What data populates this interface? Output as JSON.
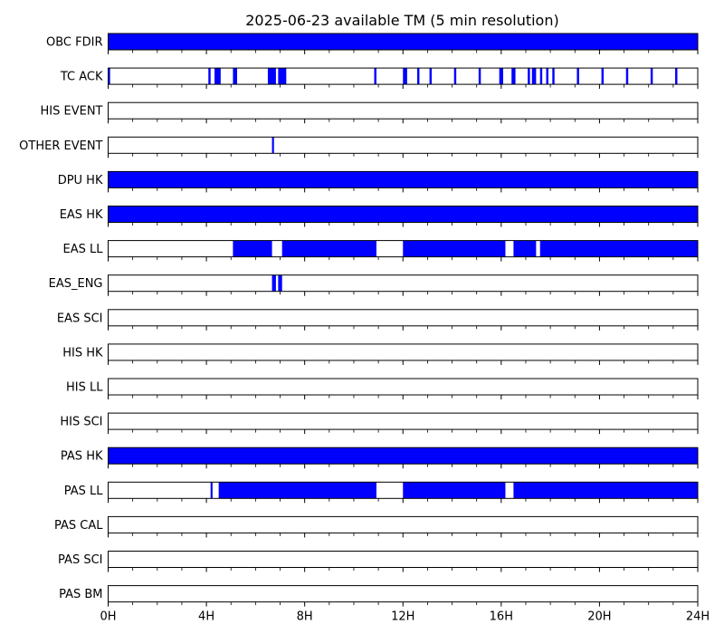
{
  "chart_data": {
    "type": "timeline",
    "title": "2025-06-23 available TM (5 min resolution)",
    "x_unit": "hours",
    "xlim": [
      0,
      24
    ],
    "x_major_ticks": [
      0,
      4,
      8,
      12,
      16,
      20,
      24
    ],
    "x_tick_labels": [
      "0H",
      "4H",
      "8H",
      "12H",
      "16H",
      "20H",
      "24H"
    ],
    "x_minor_tick_step_hours": 1,
    "bar_color": "#0000ff",
    "frame_color": "#000000",
    "rows": [
      {
        "label": "OBC FDIR",
        "intervals": [
          [
            0,
            24
          ]
        ]
      },
      {
        "label": "TC ACK",
        "intervals": [
          [
            0,
            0.08
          ],
          [
            4.08,
            4.17
          ],
          [
            4.33,
            4.58
          ],
          [
            5.08,
            5.25
          ],
          [
            6.5,
            6.83
          ],
          [
            6.92,
            7.25
          ],
          [
            10.83,
            10.92
          ],
          [
            12,
            12.17
          ],
          [
            12.58,
            12.67
          ],
          [
            13.08,
            13.17
          ],
          [
            14.08,
            14.17
          ],
          [
            15.08,
            15.17
          ],
          [
            15.92,
            16.08
          ],
          [
            16.42,
            16.58
          ],
          [
            17.08,
            17.17
          ],
          [
            17.25,
            17.42
          ],
          [
            17.58,
            17.67
          ],
          [
            17.83,
            17.92
          ],
          [
            18.08,
            18.17
          ],
          [
            19.08,
            19.17
          ],
          [
            20.08,
            20.17
          ],
          [
            21.08,
            21.17
          ],
          [
            22.08,
            22.17
          ],
          [
            23.08,
            23.17
          ]
        ]
      },
      {
        "label": "HIS EVENT",
        "intervals": []
      },
      {
        "label": "OTHER EVENT",
        "intervals": [
          [
            6.67,
            6.75
          ]
        ]
      },
      {
        "label": "DPU HK",
        "intervals": [
          [
            0,
            24
          ]
        ]
      },
      {
        "label": "EAS HK",
        "intervals": [
          [
            0,
            24
          ]
        ]
      },
      {
        "label": "EAS LL",
        "intervals": [
          [
            5.08,
            6.67
          ],
          [
            7.08,
            10.92
          ],
          [
            12,
            16.17
          ],
          [
            16.5,
            17.42
          ],
          [
            17.58,
            24
          ]
        ]
      },
      {
        "label": "EAS_ENG",
        "intervals": [
          [
            6.67,
            6.83
          ],
          [
            6.92,
            7.08
          ]
        ]
      },
      {
        "label": "EAS SCI",
        "intervals": []
      },
      {
        "label": "HIS HK",
        "intervals": []
      },
      {
        "label": "HIS LL",
        "intervals": []
      },
      {
        "label": "HIS SCI",
        "intervals": []
      },
      {
        "label": "PAS HK",
        "intervals": [
          [
            0,
            24
          ]
        ]
      },
      {
        "label": "PAS LL",
        "intervals": [
          [
            4.17,
            4.25
          ],
          [
            4.5,
            10.92
          ],
          [
            12,
            16.17
          ],
          [
            16.5,
            24
          ]
        ]
      },
      {
        "label": "PAS CAL",
        "intervals": []
      },
      {
        "label": "PAS SCI",
        "intervals": []
      },
      {
        "label": "PAS BM",
        "intervals": []
      }
    ]
  }
}
